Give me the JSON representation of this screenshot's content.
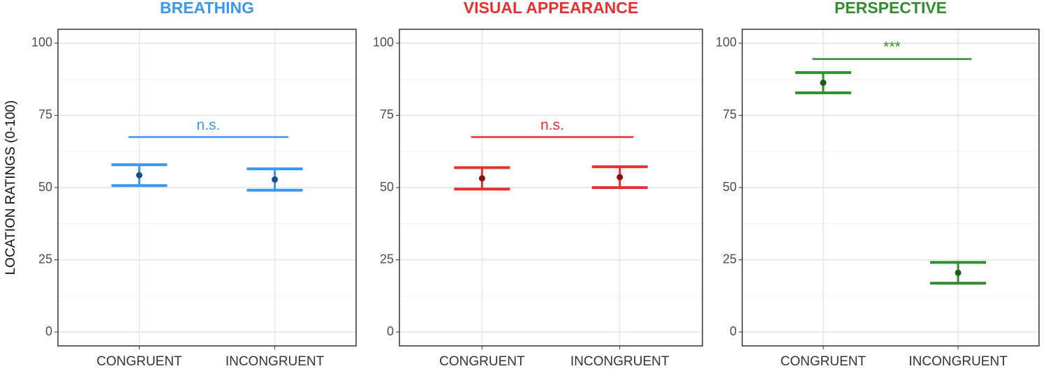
{
  "chart_data": [
    {
      "type": "errorbar",
      "title": "BREATHING",
      "y_label": "LOCATION RATINGS (0-100)",
      "color": "#3b98ec",
      "point_color": "#1b4f8c",
      "categories": [
        "CONGRUENT",
        "INCONGRUENT"
      ],
      "values": [
        54.3,
        52.8
      ],
      "errors": [
        3.6,
        3.7
      ],
      "bracket": {
        "value": 67.5,
        "label": "n.s."
      },
      "ylim": [
        -4.8,
        104.8
      ],
      "yticks": [
        0,
        25,
        50,
        75,
        100
      ],
      "grid": true
    },
    {
      "type": "errorbar",
      "title": "VISUAL APPEARANCE",
      "color": "#e8302e",
      "point_color": "#8b1010",
      "categories": [
        "CONGRUENT",
        "INCONGRUENT"
      ],
      "values": [
        53.2,
        53.6
      ],
      "errors": [
        3.7,
        3.6
      ],
      "bracket": {
        "value": 67.5,
        "label": "n.s."
      },
      "ylim": [
        -4.8,
        104.8
      ],
      "yticks": [
        0,
        25,
        50,
        75,
        100
      ],
      "grid": true
    },
    {
      "type": "errorbar",
      "title": "PERSPECTIVE",
      "color": "#2f8f2f",
      "point_color": "#1e5c1e",
      "categories": [
        "CONGRUENT",
        "INCONGRUENT"
      ],
      "values": [
        86.3,
        20.5
      ],
      "errors": [
        3.5,
        3.6
      ],
      "bracket": {
        "value": 94.5,
        "label": "***"
      },
      "ylim": [
        -4.8,
        104.8
      ],
      "yticks": [
        0,
        25,
        50,
        75,
        100
      ],
      "grid": true
    }
  ]
}
